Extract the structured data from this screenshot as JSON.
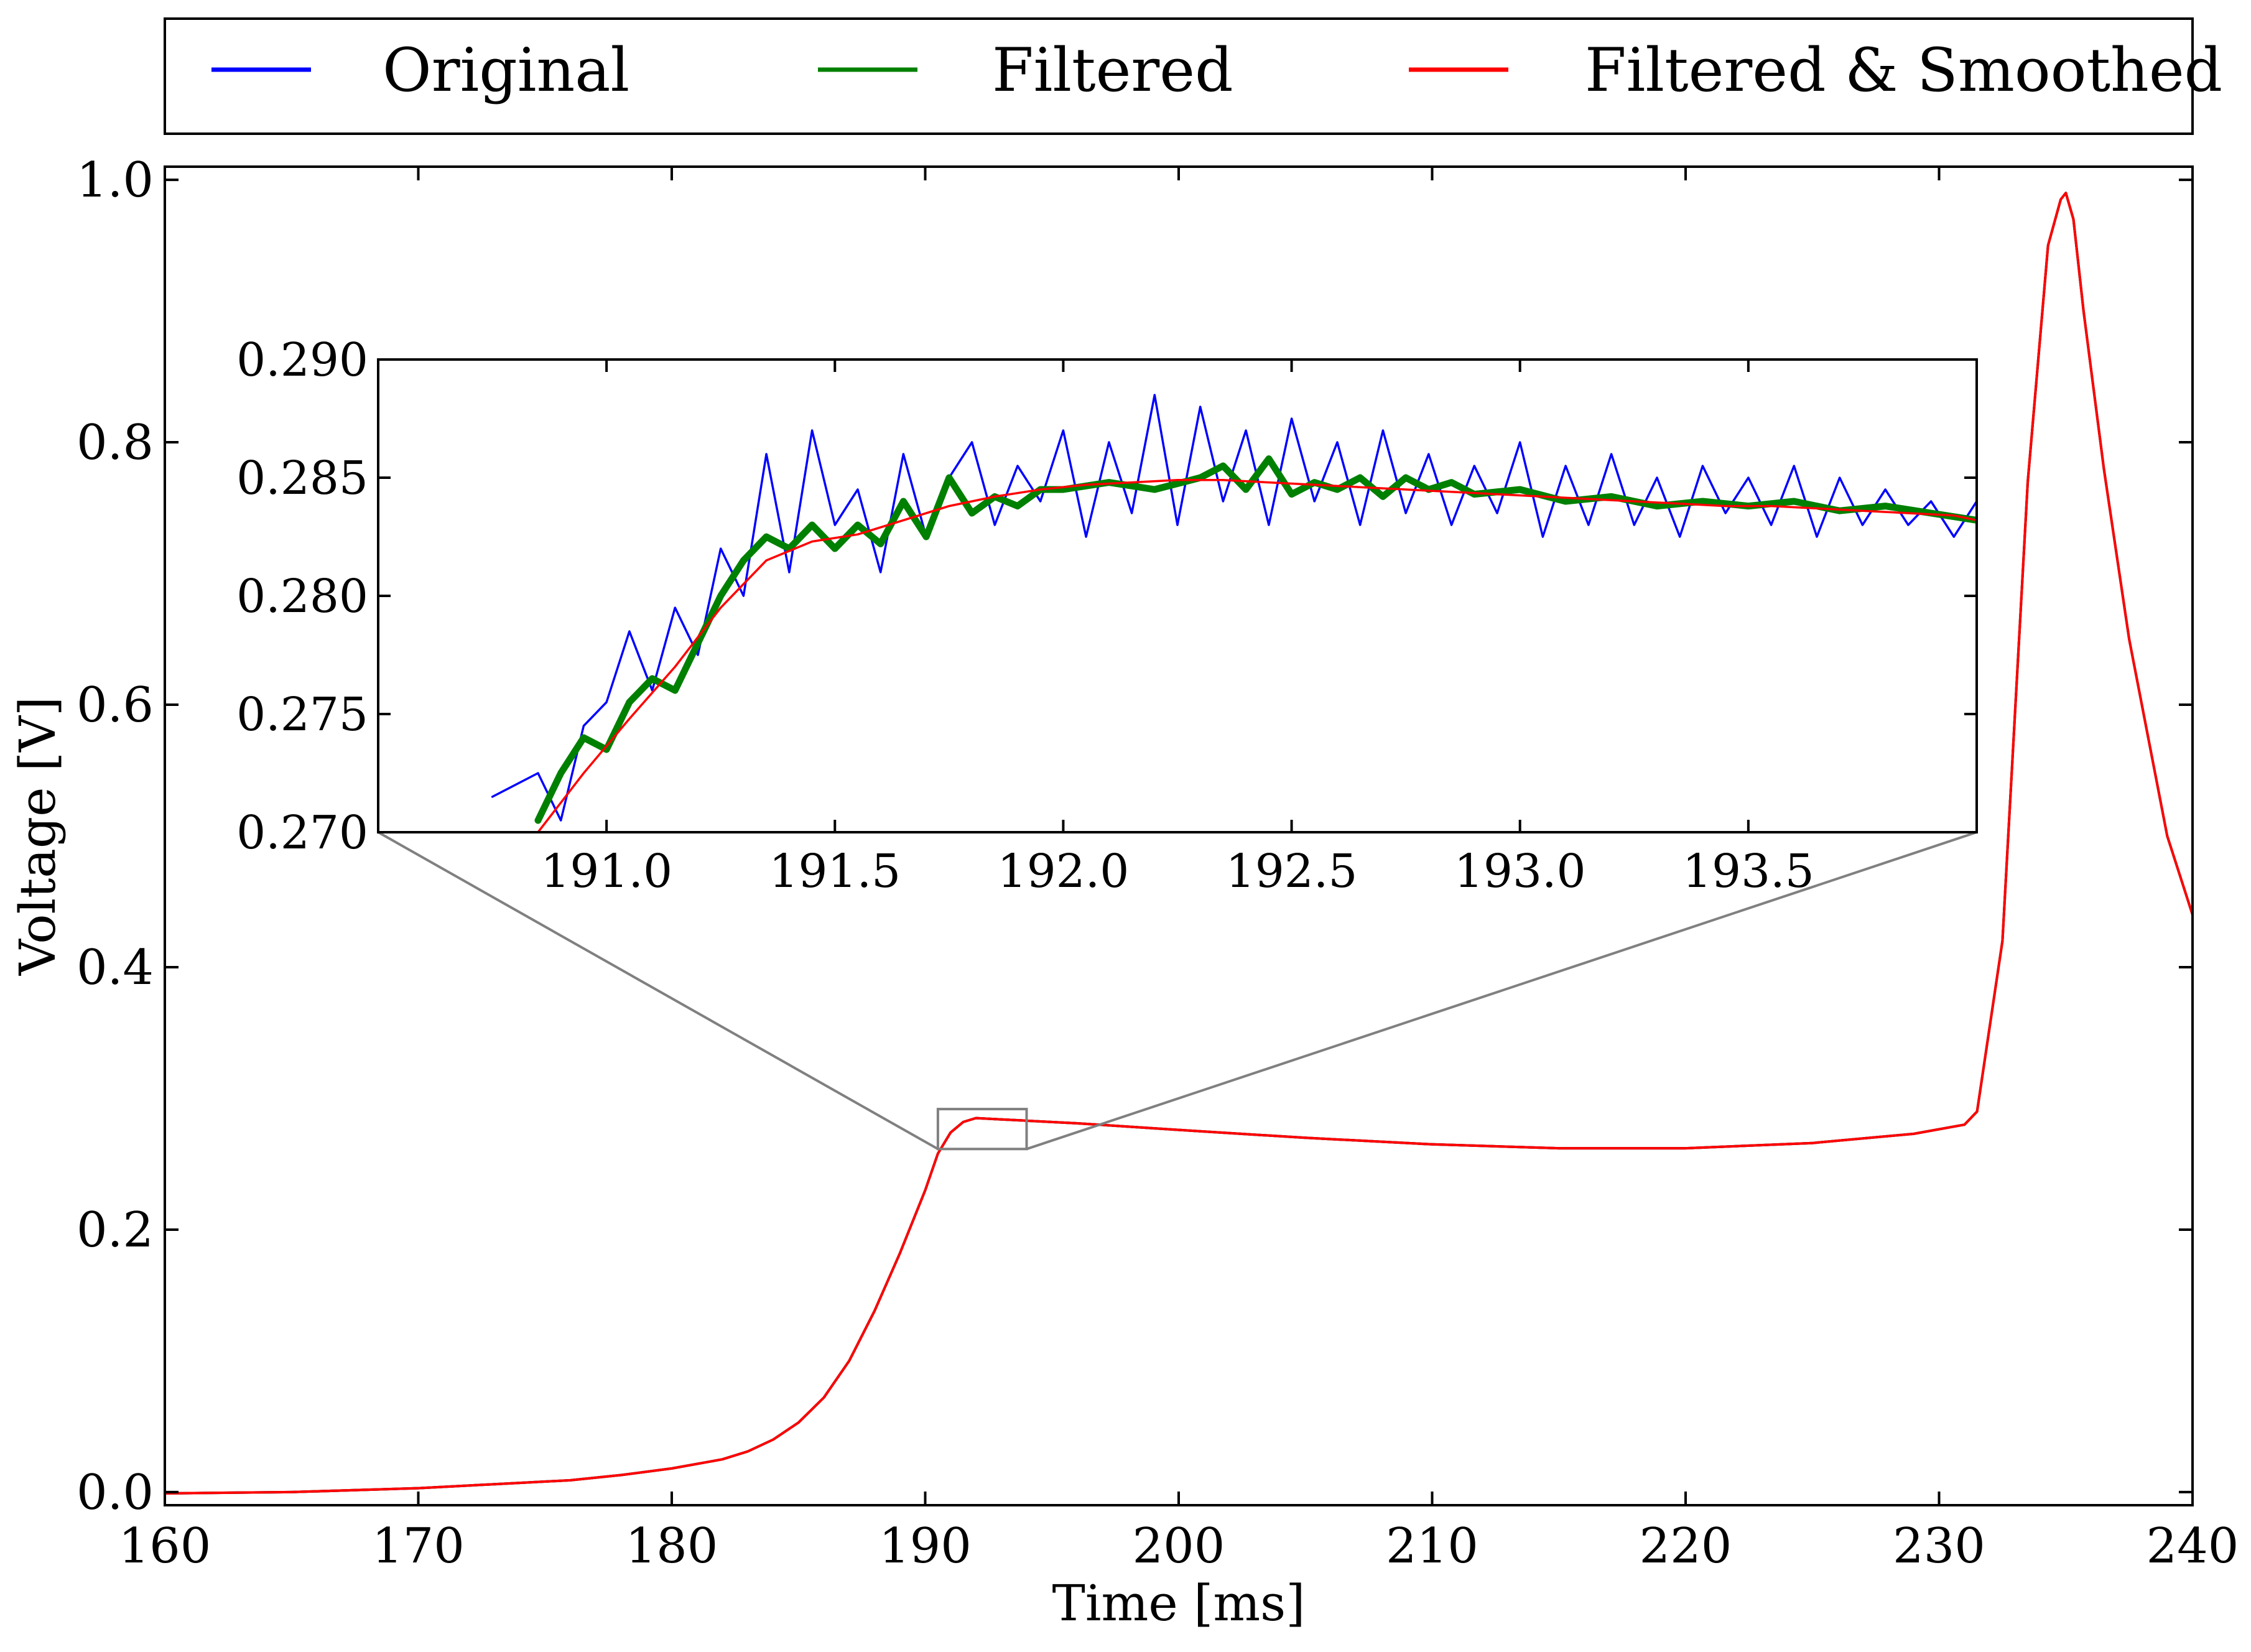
{
  "chart_data": {
    "type": "line",
    "xlabel": "Time [ms]",
    "ylabel": "Voltage [V]",
    "xlim": [
      160,
      240
    ],
    "ylim": [
      -0.01,
      1.01
    ],
    "xticks": [
      160,
      170,
      180,
      190,
      200,
      210,
      220,
      230,
      240
    ],
    "xtick_labels": [
      "160",
      "170",
      "180",
      "190",
      "200",
      "210",
      "220",
      "230",
      "240"
    ],
    "yticks": [
      0.0,
      0.2,
      0.4,
      0.6,
      0.8,
      1.0
    ],
    "ytick_labels": [
      "0.0",
      "0.2",
      "0.4",
      "0.6",
      "0.8",
      "1.0"
    ],
    "grid": false,
    "legend_position": "top",
    "series": [
      {
        "name": "Original",
        "color": "#0000ff",
        "x": [
          160,
          165,
          170,
          173,
          176,
          178,
          180,
          182,
          183,
          184,
          185,
          186,
          187,
          188,
          189,
          190,
          190.5,
          191,
          191.5,
          192,
          193,
          194,
          196,
          200,
          205,
          210,
          215,
          220,
          225,
          229,
          231,
          231.5,
          232.5,
          233.5,
          234.3,
          234.8,
          235.0,
          235.3,
          235.7,
          236.5,
          237.5,
          239,
          240
        ],
        "y": [
          -0.001,
          0.0,
          0.003,
          0.006,
          0.009,
          0.013,
          0.018,
          0.025,
          0.031,
          0.04,
          0.053,
          0.072,
          0.1,
          0.138,
          0.182,
          0.23,
          0.258,
          0.274,
          0.282,
          0.285,
          0.284,
          0.283,
          0.281,
          0.276,
          0.27,
          0.265,
          0.262,
          0.262,
          0.266,
          0.273,
          0.28,
          0.29,
          0.42,
          0.77,
          0.95,
          0.985,
          0.99,
          0.97,
          0.9,
          0.78,
          0.65,
          0.5,
          0.44
        ]
      },
      {
        "name": "Filtered",
        "color": "#008000",
        "x": [
          160,
          165,
          170,
          173,
          176,
          178,
          180,
          182,
          183,
          184,
          185,
          186,
          187,
          188,
          189,
          190,
          190.5,
          191,
          191.5,
          192,
          193,
          194,
          196,
          200,
          205,
          210,
          215,
          220,
          225,
          229,
          231,
          231.5,
          232.5,
          233.5,
          234.3,
          234.8,
          235.0,
          235.3,
          235.7,
          236.5,
          237.5,
          239,
          240
        ],
        "y": [
          -0.001,
          0.0,
          0.003,
          0.006,
          0.009,
          0.013,
          0.018,
          0.025,
          0.031,
          0.04,
          0.053,
          0.072,
          0.1,
          0.138,
          0.182,
          0.23,
          0.258,
          0.274,
          0.282,
          0.285,
          0.284,
          0.283,
          0.281,
          0.276,
          0.27,
          0.265,
          0.262,
          0.262,
          0.266,
          0.273,
          0.28,
          0.29,
          0.42,
          0.77,
          0.95,
          0.985,
          0.99,
          0.97,
          0.9,
          0.78,
          0.65,
          0.5,
          0.44
        ]
      },
      {
        "name": "Filtered & Smoothed",
        "color": "#ff0000",
        "x": [
          160,
          165,
          170,
          173,
          176,
          178,
          180,
          182,
          183,
          184,
          185,
          186,
          187,
          188,
          189,
          190,
          190.5,
          191,
          191.5,
          192,
          193,
          194,
          196,
          200,
          205,
          210,
          215,
          220,
          225,
          229,
          231,
          231.5,
          232.5,
          233.5,
          234.3,
          234.8,
          235.0,
          235.3,
          235.7,
          236.5,
          237.5,
          239,
          240
        ],
        "y": [
          -0.001,
          0.0,
          0.003,
          0.006,
          0.009,
          0.013,
          0.018,
          0.025,
          0.031,
          0.04,
          0.053,
          0.072,
          0.1,
          0.138,
          0.182,
          0.23,
          0.258,
          0.274,
          0.282,
          0.285,
          0.284,
          0.283,
          0.281,
          0.276,
          0.27,
          0.265,
          0.262,
          0.262,
          0.266,
          0.273,
          0.28,
          0.29,
          0.42,
          0.77,
          0.95,
          0.985,
          0.99,
          0.97,
          0.9,
          0.78,
          0.65,
          0.5,
          0.44
        ]
      }
    ],
    "inset": {
      "xlim": [
        190.5,
        194.0
      ],
      "ylim": [
        0.27,
        0.29
      ],
      "xticks": [
        191.0,
        191.5,
        192.0,
        192.5,
        193.0,
        193.5
      ],
      "xtick_labels": [
        "191.0",
        "191.5",
        "192.0",
        "192.5",
        "193.0",
        "193.5"
      ],
      "yticks": [
        0.27,
        0.275,
        0.28,
        0.285,
        0.29
      ],
      "ytick_labels": [
        "0.270",
        "0.275",
        "0.280",
        "0.285",
        "0.290"
      ],
      "zoom_box": {
        "x": [
          190.5,
          194.0
        ],
        "y": [
          0.27,
          0.29
        ]
      },
      "series": [
        {
          "name": "Original",
          "color": "#0000ff",
          "x": [
            190.75,
            190.85,
            190.9,
            190.95,
            191.0,
            191.05,
            191.1,
            191.15,
            191.2,
            191.25,
            191.3,
            191.35,
            191.4,
            191.45,
            191.5,
            191.55,
            191.6,
            191.65,
            191.7,
            191.75,
            191.8,
            191.85,
            191.9,
            191.95,
            192.0,
            192.05,
            192.1,
            192.15,
            192.2,
            192.25,
            192.3,
            192.35,
            192.4,
            192.45,
            192.5,
            192.55,
            192.6,
            192.65,
            192.7,
            192.75,
            192.8,
            192.85,
            192.9,
            192.95,
            193.0,
            193.05,
            193.1,
            193.15,
            193.2,
            193.25,
            193.3,
            193.35,
            193.4,
            193.45,
            193.5,
            193.55,
            193.6,
            193.65,
            193.7,
            193.75,
            193.8,
            193.85,
            193.9,
            193.95,
            194.0
          ],
          "y": [
            0.2715,
            0.2725,
            0.2705,
            0.2745,
            0.2755,
            0.2785,
            0.276,
            0.2795,
            0.2775,
            0.282,
            0.28,
            0.286,
            0.281,
            0.287,
            0.283,
            0.2845,
            0.281,
            0.286,
            0.2825,
            0.285,
            0.2865,
            0.283,
            0.2855,
            0.284,
            0.287,
            0.2825,
            0.2865,
            0.2835,
            0.2885,
            0.283,
            0.288,
            0.284,
            0.287,
            0.283,
            0.2875,
            0.284,
            0.2865,
            0.283,
            0.287,
            0.2835,
            0.286,
            0.283,
            0.2855,
            0.2835,
            0.2865,
            0.2825,
            0.2855,
            0.283,
            0.286,
            0.283,
            0.285,
            0.2825,
            0.2855,
            0.2835,
            0.285,
            0.283,
            0.2855,
            0.2825,
            0.285,
            0.283,
            0.2845,
            0.283,
            0.284,
            0.2825,
            0.284
          ]
        },
        {
          "name": "Filtered",
          "color": "#008000",
          "x": [
            190.85,
            190.9,
            190.95,
            191.0,
            191.05,
            191.1,
            191.15,
            191.2,
            191.25,
            191.3,
            191.35,
            191.4,
            191.45,
            191.5,
            191.55,
            191.6,
            191.65,
            191.7,
            191.75,
            191.8,
            191.85,
            191.9,
            191.95,
            192.0,
            192.1,
            192.2,
            192.3,
            192.35,
            192.4,
            192.45,
            192.5,
            192.55,
            192.6,
            192.65,
            192.7,
            192.75,
            192.8,
            192.85,
            192.9,
            193.0,
            193.1,
            193.2,
            193.3,
            193.4,
            193.5,
            193.6,
            193.7,
            193.8,
            193.9,
            194.0
          ],
          "y": [
            0.2705,
            0.2725,
            0.274,
            0.2735,
            0.2755,
            0.2765,
            0.276,
            0.278,
            0.28,
            0.2815,
            0.2825,
            0.282,
            0.283,
            0.282,
            0.283,
            0.2822,
            0.284,
            0.2825,
            0.285,
            0.2835,
            0.2842,
            0.2838,
            0.2845,
            0.2845,
            0.2848,
            0.2845,
            0.285,
            0.2855,
            0.2845,
            0.2858,
            0.2843,
            0.2848,
            0.2845,
            0.285,
            0.2842,
            0.285,
            0.2845,
            0.2848,
            0.2843,
            0.2845,
            0.284,
            0.2842,
            0.2838,
            0.284,
            0.2838,
            0.284,
            0.2836,
            0.2838,
            0.2835,
            0.2832
          ]
        },
        {
          "name": "Filtered & Smoothed",
          "color": "#ff0000",
          "x": [
            190.85,
            190.95,
            191.05,
            191.15,
            191.25,
            191.35,
            191.45,
            191.55,
            191.65,
            191.75,
            191.85,
            191.95,
            192.05,
            192.15,
            192.25,
            192.35,
            192.45,
            192.55,
            192.65,
            192.75,
            192.85,
            192.95,
            193.05,
            193.15,
            193.25,
            193.35,
            193.45,
            193.55,
            193.65,
            193.75,
            193.85,
            193.95,
            194.0
          ],
          "y": [
            0.27,
            0.2725,
            0.2748,
            0.277,
            0.2795,
            0.2815,
            0.2823,
            0.2826,
            0.2832,
            0.2838,
            0.2842,
            0.2845,
            0.2847,
            0.2848,
            0.2849,
            0.2849,
            0.2848,
            0.2847,
            0.2846,
            0.2845,
            0.2844,
            0.2843,
            0.2842,
            0.2841,
            0.284,
            0.2839,
            0.2838,
            0.2838,
            0.2837,
            0.2836,
            0.2835,
            0.2834,
            0.2832
          ]
        }
      ]
    }
  }
}
